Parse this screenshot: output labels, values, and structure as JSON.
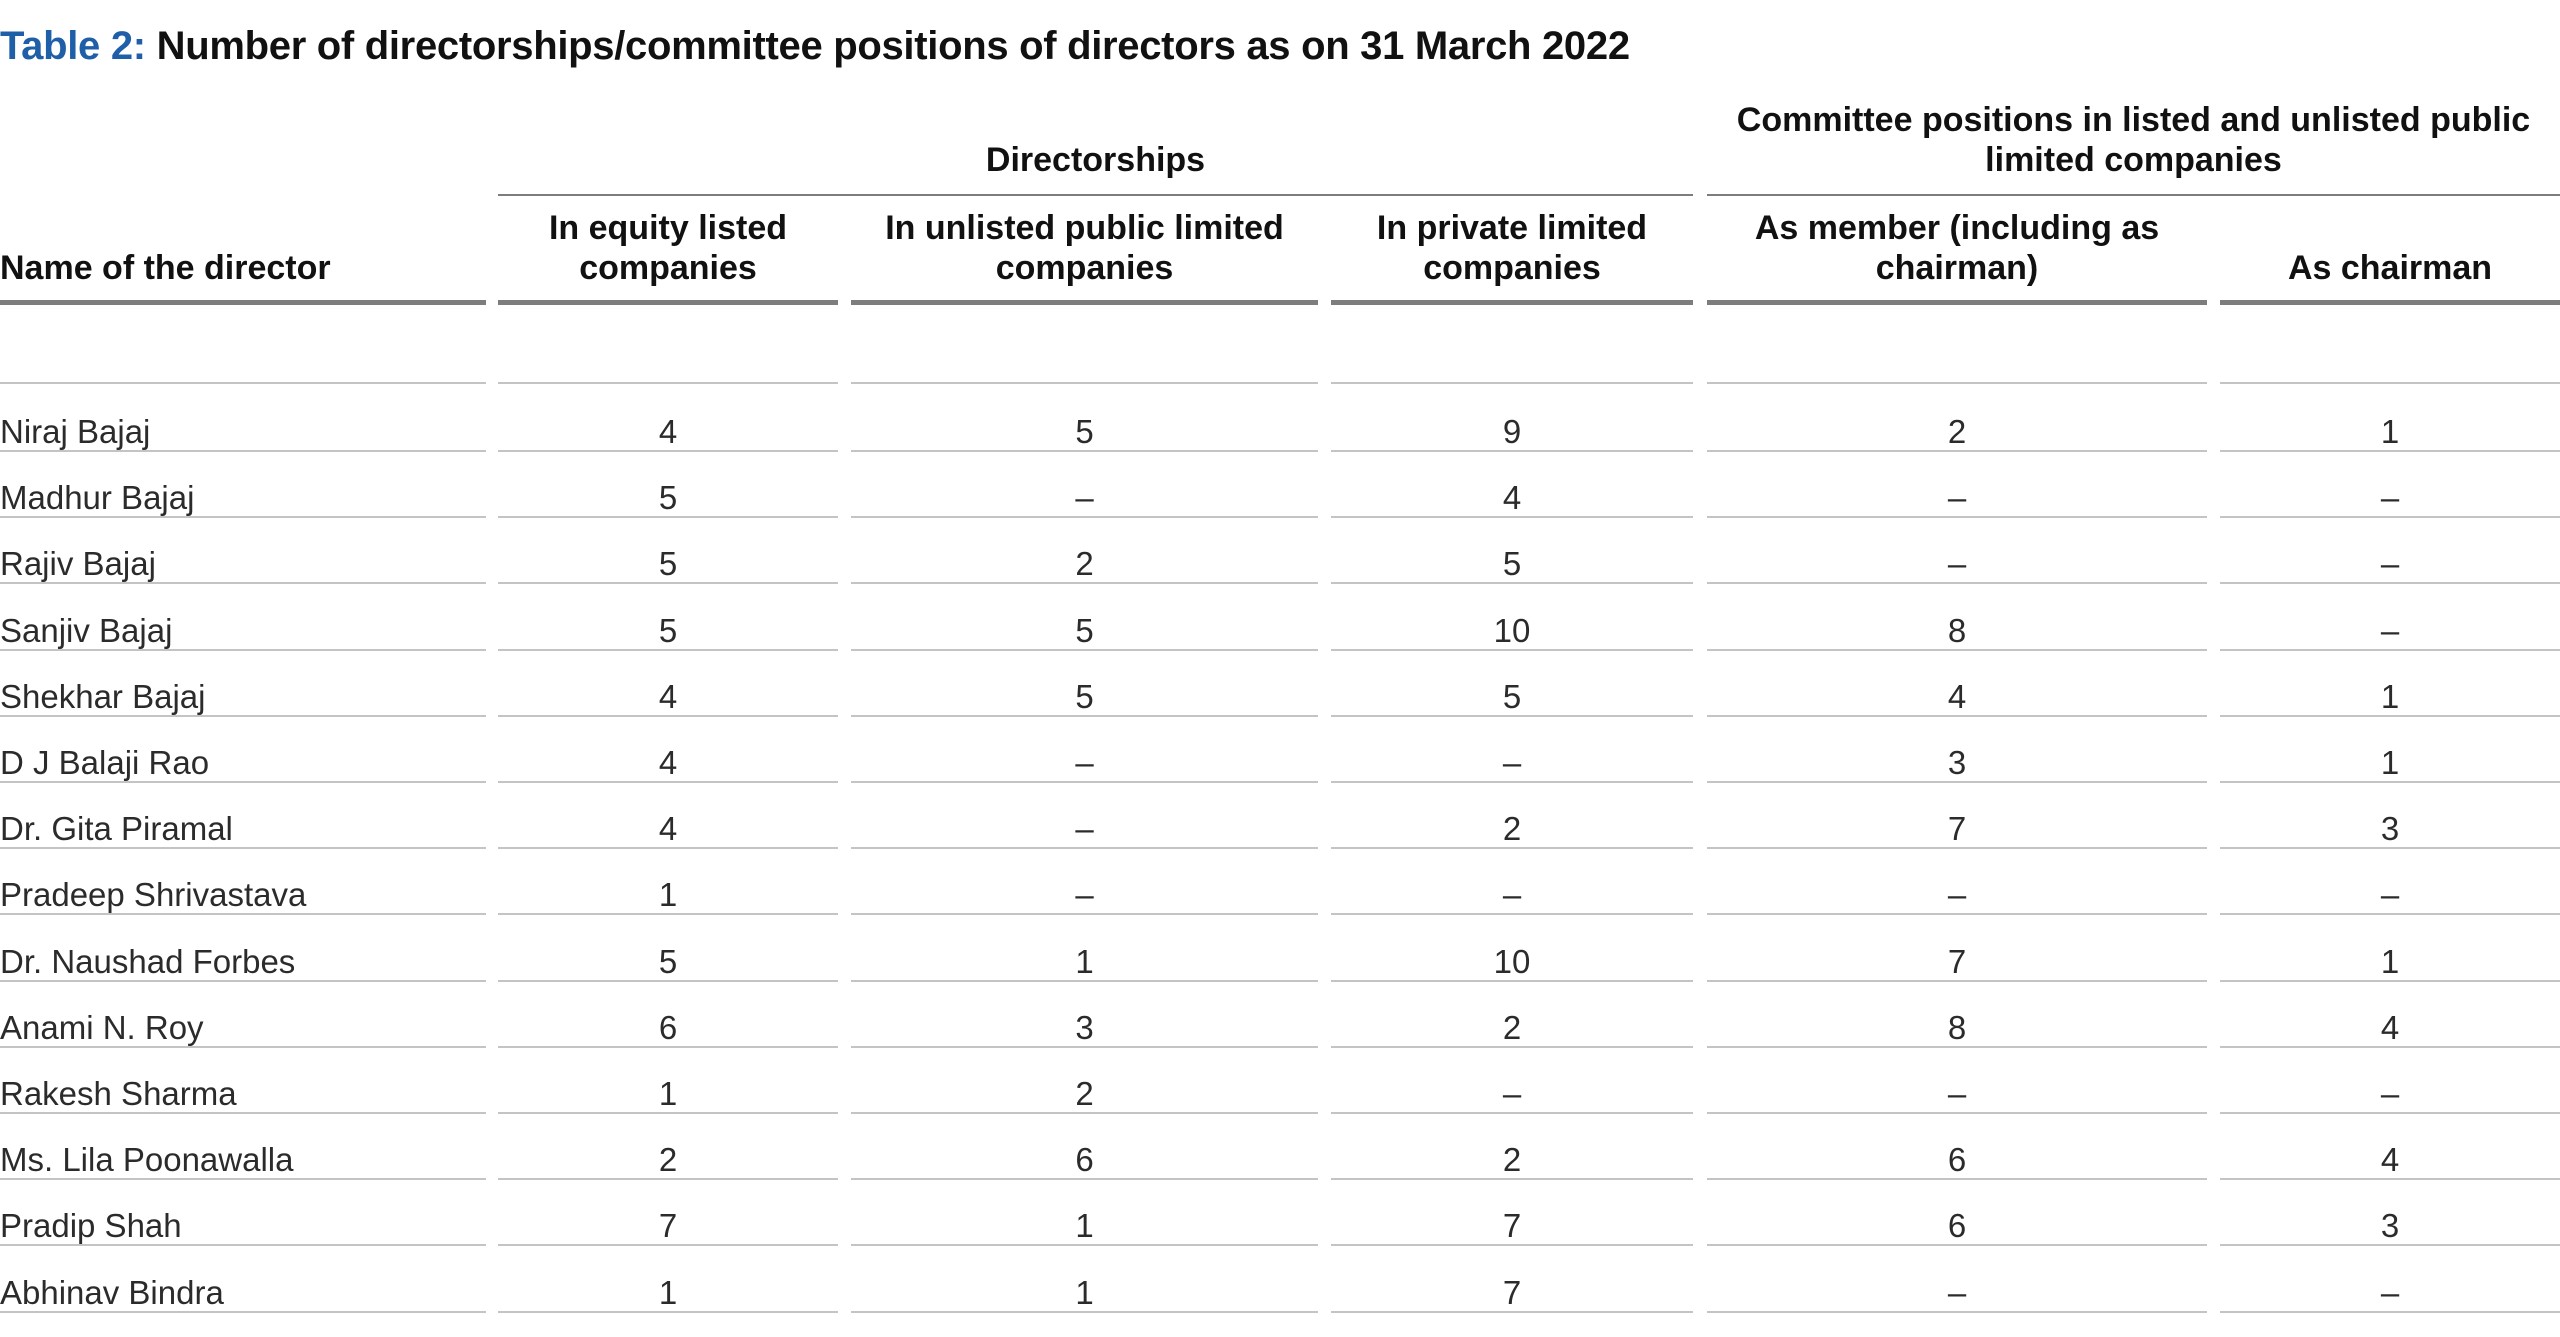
{
  "title": {
    "tag": "Table 2:",
    "text": "Number of directorships/committee positions of directors as on 31 March 2022"
  },
  "groups": {
    "directorships": "Directorships",
    "committee": "Committee positions in listed and unlisted public limited companies"
  },
  "columns": [
    "Name of the director",
    "In equity listed companies",
    "In unlisted public limited companies",
    "In private limited companies",
    "As member (including as chairman)",
    "As chairman"
  ],
  "rows": [
    [
      "Niraj Bajaj",
      "4",
      "5",
      "9",
      "2",
      "1"
    ],
    [
      "Madhur Bajaj",
      "5",
      "–",
      "4",
      "–",
      "–"
    ],
    [
      "Rajiv Bajaj",
      "5",
      "2",
      "5",
      "–",
      "–"
    ],
    [
      "Sanjiv Bajaj",
      "5",
      "5",
      "10",
      "8",
      "–"
    ],
    [
      "Shekhar Bajaj",
      "4",
      "5",
      "5",
      "4",
      "1"
    ],
    [
      "D J Balaji Rao",
      "4",
      "–",
      "–",
      "3",
      "1"
    ],
    [
      "Dr. Gita Piramal",
      "4",
      "–",
      "2",
      "7",
      "3"
    ],
    [
      "Pradeep Shrivastava",
      "1",
      "–",
      "–",
      "–",
      "–"
    ],
    [
      "Dr. Naushad Forbes",
      "5",
      "1",
      "10",
      "7",
      "1"
    ],
    [
      "Anami N. Roy",
      "6",
      "3",
      "2",
      "8",
      "4"
    ],
    [
      "Rakesh Sharma",
      "1",
      "2",
      "–",
      "–",
      "–"
    ],
    [
      "Ms. Lila Poonawalla",
      "2",
      "6",
      "2",
      "6",
      "4"
    ],
    [
      "Pradip Shah",
      "7",
      "1",
      "7",
      "6",
      "3"
    ],
    [
      "Abhinav Bindra",
      "1",
      "1",
      "7",
      "–",
      "–"
    ]
  ]
}
